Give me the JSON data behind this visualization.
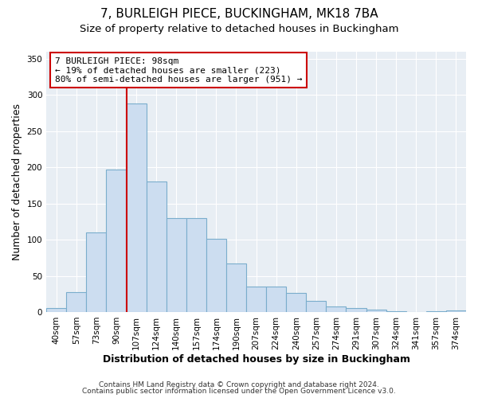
{
  "title": "7, BURLEIGH PIECE, BUCKINGHAM, MK18 7BA",
  "subtitle": "Size of property relative to detached houses in Buckingham",
  "xlabel": "Distribution of detached houses by size in Buckingham",
  "ylabel": "Number of detached properties",
  "footer_line1": "Contains HM Land Registry data © Crown copyright and database right 2024.",
  "footer_line2": "Contains public sector information licensed under the Open Government Licence v3.0.",
  "bin_labels": [
    "40sqm",
    "57sqm",
    "73sqm",
    "90sqm",
    "107sqm",
    "124sqm",
    "140sqm",
    "157sqm",
    "174sqm",
    "190sqm",
    "207sqm",
    "224sqm",
    "240sqm",
    "257sqm",
    "274sqm",
    "291sqm",
    "307sqm",
    "324sqm",
    "341sqm",
    "357sqm",
    "374sqm"
  ],
  "bar_values": [
    6,
    28,
    110,
    197,
    288,
    180,
    130,
    130,
    101,
    67,
    35,
    35,
    26,
    15,
    8,
    5,
    3,
    1,
    0,
    1,
    2
  ],
  "bar_color": "#ccddf0",
  "bar_edge_color": "#7aadcc",
  "vline_color": "#cc0000",
  "annotation_title": "7 BURLEIGH PIECE: 98sqm",
  "annotation_line1": "← 19% of detached houses are smaller (223)",
  "annotation_line2": "80% of semi-detached houses are larger (951) →",
  "annotation_box_color": "#ffffff",
  "annotation_box_edge_color": "#cc0000",
  "ylim": [
    0,
    360
  ],
  "yticks": [
    0,
    50,
    100,
    150,
    200,
    250,
    300,
    350
  ],
  "background_color": "#ffffff",
  "plot_bg_color": "#e8eef4",
  "grid_color": "#ffffff",
  "title_fontsize": 11,
  "subtitle_fontsize": 9.5,
  "axis_label_fontsize": 9,
  "tick_fontsize": 7.5,
  "footer_fontsize": 6.5
}
